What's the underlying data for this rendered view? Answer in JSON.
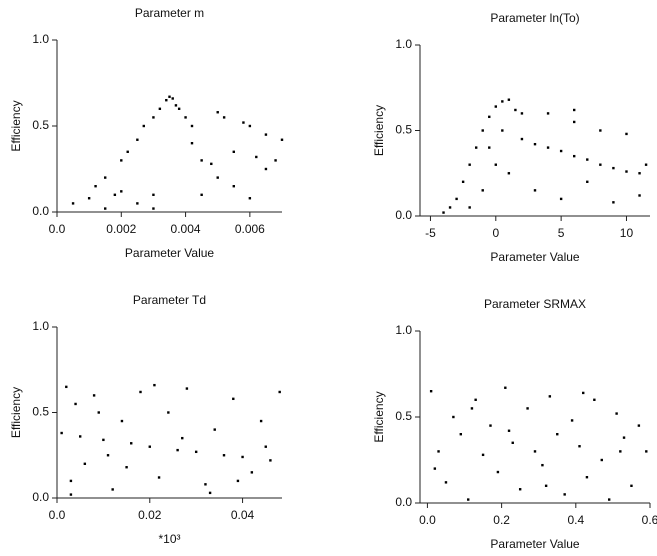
{
  "chart_data": [
    {
      "type": "scatter",
      "title": "Parameter m",
      "x_label": "Parameter Value",
      "y_label": "Efficiency",
      "color": "#000000",
      "xlim": [
        0,
        0.007
      ],
      "ylim": [
        0,
        1
      ],
      "xticks": [
        {
          "value": 0,
          "label": "0.0"
        },
        0.002,
        0.004,
        0.006
      ],
      "yticks": [
        {
          "value": 0,
          "label": "0.0"
        },
        0.5,
        {
          "value": 1,
          "label": "1.0"
        }
      ],
      "x": [
        0.0005,
        0.001,
        0.0012,
        0.0015,
        0.0018,
        0.002,
        0.0022,
        0.0025,
        0.0027,
        0.003,
        0.003,
        0.0032,
        0.0034,
        0.0035,
        0.0036,
        0.0037,
        0.0038,
        0.004,
        0.0042,
        0.0045,
        0.0048,
        0.005,
        0.0052,
        0.0055,
        0.0058,
        0.006,
        0.0062,
        0.0065,
        0.0068,
        0.007,
        0.0045,
        0.005,
        0.0055,
        0.006,
        0.0065,
        0.002,
        0.0025,
        0.003,
        0.0015,
        0.0042
      ],
      "values": [
        0.05,
        0.08,
        0.15,
        0.2,
        0.1,
        0.3,
        0.35,
        0.42,
        0.5,
        0.55,
        0.02,
        0.6,
        0.65,
        0.67,
        0.66,
        0.62,
        0.6,
        0.55,
        0.5,
        0.3,
        0.28,
        0.58,
        0.55,
        0.35,
        0.52,
        0.5,
        0.32,
        0.45,
        0.3,
        0.42,
        0.1,
        0.2,
        0.15,
        0.08,
        0.25,
        0.12,
        0.05,
        0.1,
        0.02,
        0.4
      ]
    },
    {
      "type": "scatter",
      "title": "Parameter ln(To)",
      "x_label": "Parameter Value",
      "y_label": "Efficiency",
      "color": "#000000",
      "xlim": [
        -5.8,
        11.8
      ],
      "ylim": [
        0,
        1
      ],
      "xticks": [
        -5,
        0,
        5,
        10
      ],
      "yticks": [
        {
          "value": 0,
          "label": "0.0"
        },
        0.5,
        {
          "value": 1,
          "label": "1.0"
        }
      ],
      "x": [
        -4,
        -3.5,
        -3,
        -2.5,
        -2,
        -1.5,
        -1,
        -0.5,
        0,
        0.5,
        1,
        1.5,
        2,
        3,
        4,
        5,
        6,
        7,
        8,
        9,
        10,
        11,
        11.5,
        -2,
        -1,
        0,
        2,
        4,
        6,
        8,
        10,
        3,
        5,
        7,
        9,
        11,
        1,
        -0.5,
        0.5,
        6
      ],
      "values": [
        0.02,
        0.05,
        0.1,
        0.2,
        0.3,
        0.4,
        0.5,
        0.58,
        0.64,
        0.67,
        0.68,
        0.62,
        0.45,
        0.42,
        0.4,
        0.38,
        0.35,
        0.33,
        0.3,
        0.28,
        0.26,
        0.25,
        0.3,
        0.05,
        0.15,
        0.3,
        0.6,
        0.6,
        0.55,
        0.5,
        0.48,
        0.15,
        0.1,
        0.2,
        0.08,
        0.12,
        0.25,
        0.4,
        0.5,
        0.62
      ]
    },
    {
      "type": "scatter",
      "title": "Parameter Td",
      "x_label": "*10³",
      "y_label": "Efficiency",
      "color": "#000000",
      "xlim": [
        0,
        0.0485
      ],
      "ylim": [
        0,
        1
      ],
      "xticks": [
        {
          "value": 0,
          "label": "0.0"
        },
        0.02,
        0.04
      ],
      "yticks": [
        {
          "value": 0,
          "label": "0.0"
        },
        0.5,
        {
          "value": 1,
          "label": "1.0"
        }
      ],
      "x": [
        0.001,
        0.002,
        0.003,
        0.004,
        0.005,
        0.006,
        0.008,
        0.01,
        0.012,
        0.014,
        0.016,
        0.018,
        0.02,
        0.022,
        0.024,
        0.026,
        0.028,
        0.03,
        0.032,
        0.034,
        0.036,
        0.038,
        0.04,
        0.042,
        0.044,
        0.046,
        0.048,
        0.003,
        0.009,
        0.015,
        0.021,
        0.027,
        0.033,
        0.039,
        0.045,
        0.011
      ],
      "values": [
        0.38,
        0.65,
        0.1,
        0.55,
        0.36,
        0.2,
        0.6,
        0.34,
        0.05,
        0.45,
        0.32,
        0.62,
        0.3,
        0.12,
        0.5,
        0.28,
        0.64,
        0.27,
        0.08,
        0.4,
        0.25,
        0.58,
        0.24,
        0.15,
        0.45,
        0.22,
        0.62,
        0.02,
        0.5,
        0.18,
        0.66,
        0.35,
        0.03,
        0.1,
        0.3,
        0.25
      ]
    },
    {
      "type": "scatter",
      "title": "Parameter SRMAX",
      "x_label": "Parameter Value",
      "y_label": "Efficiency",
      "color": "#000000",
      "xlim": [
        -0.02,
        0.6
      ],
      "ylim": [
        0,
        1
      ],
      "xticks": [
        {
          "value": 0,
          "label": "0.0"
        },
        0.2,
        0.4,
        0.6
      ],
      "yticks": [
        {
          "value": 0,
          "label": "0.0"
        },
        0.5,
        {
          "value": 1,
          "label": "1.0"
        }
      ],
      "x": [
        0.01,
        0.03,
        0.05,
        0.07,
        0.09,
        0.11,
        0.13,
        0.15,
        0.17,
        0.19,
        0.21,
        0.23,
        0.25,
        0.27,
        0.29,
        0.31,
        0.33,
        0.35,
        0.37,
        0.39,
        0.41,
        0.43,
        0.45,
        0.47,
        0.49,
        0.51,
        0.53,
        0.55,
        0.57,
        0.59,
        0.02,
        0.12,
        0.22,
        0.32,
        0.42,
        0.52
      ],
      "values": [
        0.65,
        0.3,
        0.12,
        0.5,
        0.4,
        0.02,
        0.6,
        0.28,
        0.45,
        0.18,
        0.67,
        0.35,
        0.08,
        0.55,
        0.3,
        0.22,
        0.62,
        0.4,
        0.05,
        0.48,
        0.33,
        0.15,
        0.6,
        0.25,
        0.02,
        0.52,
        0.38,
        0.1,
        0.45,
        0.3,
        0.2,
        0.55,
        0.42,
        0.1,
        0.64,
        0.3
      ]
    }
  ]
}
